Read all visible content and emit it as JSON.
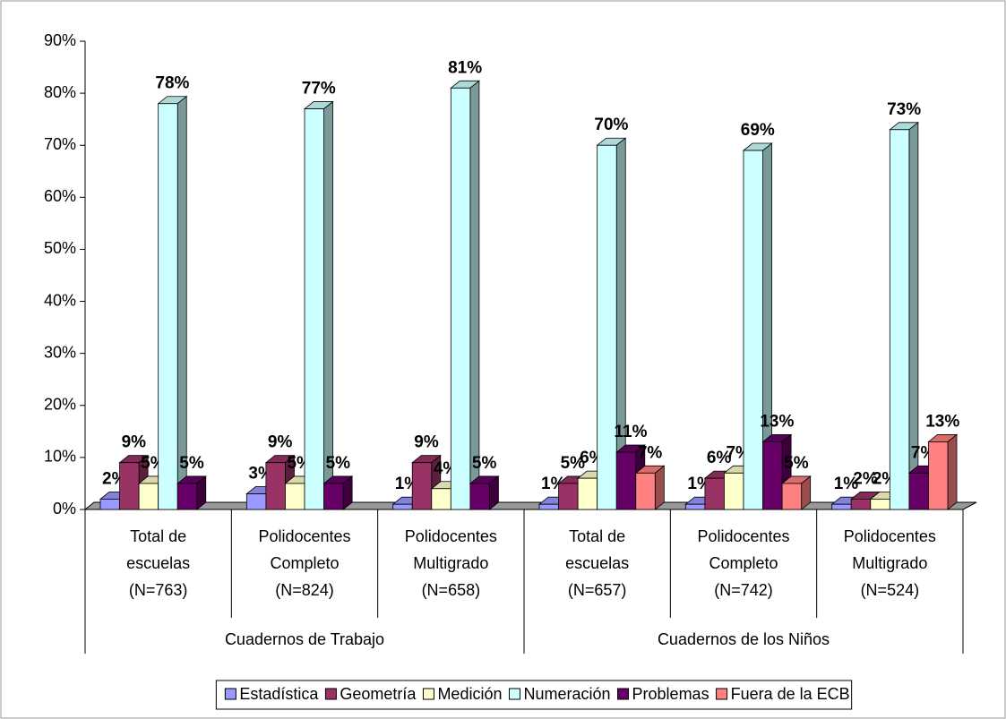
{
  "chart_data": {
    "type": "bar3d",
    "categories": [
      [
        "Total de",
        "escuelas",
        "(N=763)"
      ],
      [
        "Polidocentes",
        "Completo",
        "(N=824)"
      ],
      [
        "Polidocentes",
        "Multigrado",
        "(N=658)"
      ],
      [
        "Total de",
        "escuelas",
        "(N=657)"
      ],
      [
        "Polidocentes",
        "Completo",
        "(N=742)"
      ],
      [
        "Polidocentes",
        "Multigrado",
        "(N=524)"
      ]
    ],
    "groups": [
      "Cuadernos de Trabajo",
      "Cuadernos de los Niños"
    ],
    "series": [
      {
        "name": "Estadística",
        "color": "#9999ff",
        "values": [
          2,
          3,
          1,
          1,
          1,
          1
        ],
        "value_labels": [
          "2%",
          "3%",
          "1%",
          "1%",
          "1%",
          "1%"
        ]
      },
      {
        "name": "Geometría",
        "color": "#993366",
        "values": [
          9,
          9,
          9,
          5,
          6,
          2
        ],
        "value_labels": [
          "9%",
          "9%",
          "9%",
          "5%",
          "6%",
          "2%"
        ]
      },
      {
        "name": "Medición",
        "color": "#ffffcc",
        "values": [
          5,
          5,
          4,
          6,
          7,
          2
        ],
        "value_labels": [
          "5%",
          "5%",
          "4%",
          "6%",
          "7%",
          "2%"
        ]
      },
      {
        "name": "Numeración",
        "color": "#ccffff",
        "values": [
          78,
          77,
          81,
          70,
          69,
          73
        ],
        "value_labels": [
          "78%",
          "77%",
          "81%",
          "70%",
          "69%",
          "73%"
        ]
      },
      {
        "name": "Problemas",
        "color": "#660066",
        "values": [
          5,
          5,
          5,
          11,
          13,
          7
        ],
        "value_labels": [
          "5%",
          "5%",
          "5%",
          "11%",
          "13%",
          "7%"
        ]
      },
      {
        "name": "Fuera de la ECB",
        "color": "#ff8080",
        "values": [
          null,
          null,
          null,
          7,
          5,
          13
        ],
        "value_labels": [
          null,
          null,
          null,
          "7%",
          "5%",
          "13%"
        ]
      }
    ],
    "ylim": [
      0,
      90
    ],
    "yticks": [
      {
        "value": 0,
        "label": "0%"
      },
      {
        "value": 10,
        "label": "10%"
      },
      {
        "value": 20,
        "label": "20%"
      },
      {
        "value": 30,
        "label": "30%"
      },
      {
        "value": 40,
        "label": "40%"
      },
      {
        "value": 50,
        "label": "50%"
      },
      {
        "value": 60,
        "label": "60%"
      },
      {
        "value": 70,
        "label": "70%"
      },
      {
        "value": 80,
        "label": "80%"
      },
      {
        "value": 90,
        "label": "90%"
      }
    ],
    "legend": "bottom"
  }
}
